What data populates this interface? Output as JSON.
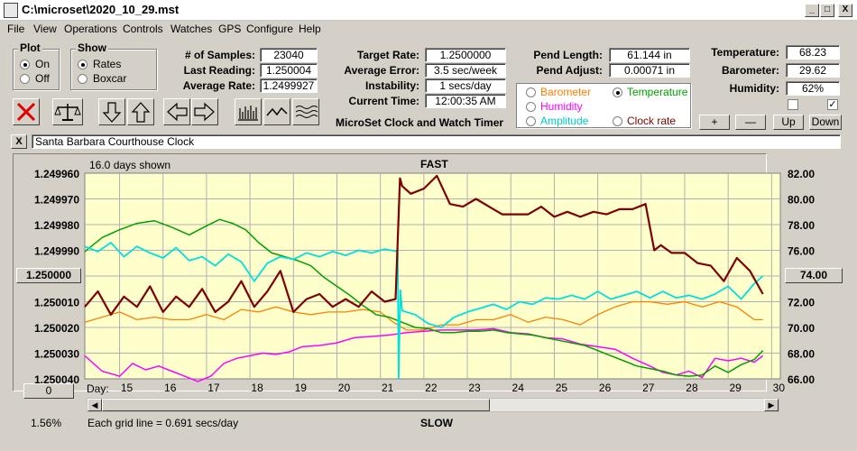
{
  "window": {
    "title": "C:\\microset\\2020_10_29.mst",
    "minimize": "_",
    "maximize": "□",
    "close": "X"
  },
  "menu": [
    "File",
    "View",
    "Operations",
    "Controls",
    "Watches",
    "GPS",
    "Configure",
    "Help"
  ],
  "plot_group": {
    "title": "Plot",
    "options": [
      {
        "label": "On",
        "selected": true
      },
      {
        "label": "Off",
        "selected": false
      }
    ]
  },
  "show_group": {
    "title": "Show",
    "options": [
      {
        "label": "Rates",
        "selected": true
      },
      {
        "label": "Boxcar",
        "selected": false
      }
    ]
  },
  "stats": {
    "samples_label": "# of Samples:",
    "samples": "23040",
    "last_label": "Last Reading:",
    "last": "1.250004",
    "avg_label": "Average Rate:",
    "avg": "1.2499927",
    "target_label": "Target Rate:",
    "target": "1.2500000",
    "error_label": "Average Error:",
    "error": "3.5 sec/week",
    "instab_label": "Instability:",
    "instab": "1 secs/day",
    "time_label": "Current Time:",
    "time": "12:00:35 AM",
    "pend_len_label": "Pend Length:",
    "pend_len": "61.144 in",
    "pend_adj_label": "Pend Adjust:",
    "pend_adj": "0.00071 in",
    "temp_label": "Temperature:",
    "temp": "68.23",
    "baro_label": "Barometer:",
    "baro": "29.62",
    "hum_label": "Humidity:",
    "hum": "62%"
  },
  "app_caption": "MicroSet Clock and Watch Timer",
  "series_select": [
    {
      "label": "Barometer",
      "color": "#ff7f00",
      "selected": false
    },
    {
      "label": "Temperature",
      "color": "#00a000",
      "selected": true
    },
    {
      "label": "Humidity",
      "color": "#ff00ff",
      "selected": false
    },
    {
      "label": "Clock rate",
      "color": "#7f0000",
      "selected": false
    },
    {
      "label": "Amplitude",
      "color": "#00c8c8",
      "selected": false
    }
  ],
  "right_buttons": [
    "+",
    "—",
    "Up",
    "Down"
  ],
  "checkboxes": [
    {
      "checked": false
    },
    {
      "checked": true
    }
  ],
  "clock_name": "Santa Barbara Courthouse Clock",
  "close_small": "X",
  "plot": {
    "days_shown": "16.0 days shown",
    "fast": "FAST",
    "slow": "SLOW",
    "grid_note": "Each grid line = 0.691 secs/day",
    "day_prefix": "Day:",
    "left_button": "1.250000",
    "right_button": "74.00",
    "zero_button": "0",
    "percent": "1.56%"
  },
  "chart_data": {
    "type": "line",
    "left_axis_ticks": [
      "1.249960",
      "1.249970",
      "1.249980",
      "1.249990",
      "1.250000",
      "1.250010",
      "1.250020",
      "1.250030",
      "1.250040"
    ],
    "right_axis_ticks": [
      "82.00",
      "80.00",
      "78.00",
      "76.00",
      "74.00",
      "72.00",
      "70.00",
      "68.00",
      "66.00"
    ],
    "x_ticks": [
      "15",
      "16",
      "17",
      "18",
      "19",
      "20",
      "21",
      "22",
      "23",
      "24",
      "25",
      "26",
      "27",
      "28",
      "29",
      "30"
    ],
    "xlim": [
      14.2,
      30.2
    ],
    "left_ylim": [
      1.24996,
      1.25004
    ],
    "right_ylim": [
      66,
      82
    ],
    "left_inverted": true,
    "grid": true,
    "background": "#ffffcc",
    "series": [
      {
        "key": "clock",
        "color": "#7f0000",
        "width": 2.2,
        "x": [
          14.2,
          14.5,
          14.8,
          15.1,
          15.4,
          15.7,
          16.0,
          16.3,
          16.6,
          16.9,
          17.2,
          17.5,
          17.8,
          18.1,
          18.4,
          18.7,
          19.0,
          19.3,
          19.6,
          19.9,
          20.2,
          20.5,
          20.8,
          21.1,
          21.35,
          21.45,
          21.5,
          21.7,
          22.0,
          22.3,
          22.6,
          22.9,
          23.2,
          23.5,
          23.8,
          24.1,
          24.4,
          24.7,
          25.0,
          25.3,
          25.6,
          25.9,
          26.2,
          26.5,
          26.8,
          27.1,
          27.3,
          27.45,
          27.7,
          28.0,
          28.3,
          28.6,
          28.9,
          29.2,
          29.5,
          29.8
        ],
        "y": [
          1.250012,
          1.250006,
          1.250015,
          1.250008,
          1.250012,
          1.250004,
          1.250014,
          1.250008,
          1.250012,
          1.250005,
          1.250014,
          1.25001,
          1.250002,
          1.250012,
          1.250006,
          1.249998,
          1.250014,
          1.250009,
          1.250007,
          1.250012,
          1.250009,
          1.250012,
          1.250006,
          1.25001,
          1.250009,
          1.249962,
          1.249965,
          1.249968,
          1.249966,
          1.249961,
          1.249972,
          1.249973,
          1.24997,
          1.249973,
          1.249976,
          1.249976,
          1.249976,
          1.249973,
          1.249977,
          1.249975,
          1.249977,
          1.249975,
          1.249976,
          1.249974,
          1.249974,
          1.249972,
          1.24999,
          1.249988,
          1.249991,
          1.249991,
          1.249995,
          1.249996,
          1.250002,
          1.249993,
          1.249998,
          1.250007
        ]
      },
      {
        "key": "amplitude",
        "color": "#00e0e0",
        "width": 1.8,
        "x": [
          14.2,
          14.5,
          14.8,
          15.1,
          15.4,
          15.7,
          16.0,
          16.3,
          16.6,
          16.9,
          17.2,
          17.5,
          17.8,
          18.1,
          18.4,
          18.7,
          19.0,
          19.3,
          19.6,
          19.9,
          20.2,
          20.5,
          20.8,
          21.1,
          21.4,
          21.42,
          21.46,
          21.5,
          21.8,
          22.1,
          22.4,
          22.7,
          23.0,
          23.3,
          23.6,
          23.9,
          24.2,
          24.5,
          24.8,
          25.1,
          25.4,
          25.7,
          26.0,
          26.3,
          26.6,
          26.9,
          27.2,
          27.5,
          27.8,
          28.1,
          28.4,
          28.7,
          29.0,
          29.3,
          29.6,
          29.8
        ],
        "y": [
          76.3,
          75.9,
          76.6,
          75.5,
          76.3,
          75.8,
          75.4,
          76.2,
          75.2,
          75.5,
          74.8,
          75.7,
          75.1,
          73.6,
          75.0,
          75.5,
          75.3,
          75.8,
          75.5,
          75.9,
          75.6,
          76.0,
          75.8,
          76.1,
          75.9,
          66.0,
          72.9,
          71.3,
          71.0,
          70.3,
          70.0,
          70.8,
          71.2,
          71.5,
          71.8,
          71.4,
          72.0,
          71.8,
          72.3,
          72.2,
          72.5,
          72.2,
          72.8,
          72.2,
          72.5,
          72.8,
          72.3,
          72.8,
          72.3,
          72.5,
          72.2,
          72.6,
          73.2,
          72.2,
          73.4,
          74.0
        ]
      },
      {
        "key": "temperature",
        "color": "#00a000",
        "width": 1.5,
        "x": [
          14.2,
          14.6,
          15.0,
          15.4,
          15.8,
          16.2,
          16.6,
          17.0,
          17.3,
          17.6,
          17.9,
          18.2,
          18.5,
          18.8,
          19.1,
          19.4,
          19.7,
          20.0,
          20.3,
          20.6,
          20.9,
          21.2,
          21.5,
          21.8,
          22.1,
          22.4,
          22.7,
          23.0,
          23.3,
          23.6,
          23.9,
          24.2,
          24.5,
          24.8,
          25.1,
          25.4,
          25.7,
          26.0,
          26.3,
          26.6,
          26.9,
          27.2,
          27.5,
          27.8,
          28.1,
          28.4,
          28.7,
          29.0,
          29.3,
          29.6,
          29.8
        ],
        "y": [
          75.9,
          77.0,
          77.6,
          78.1,
          78.3,
          77.8,
          77.2,
          77.9,
          78.4,
          78.1,
          77.6,
          76.6,
          75.8,
          75.5,
          75.2,
          74.8,
          73.9,
          73.2,
          72.5,
          71.7,
          71.0,
          70.8,
          70.4,
          70.0,
          69.9,
          69.6,
          69.6,
          69.7,
          69.7,
          69.8,
          69.6,
          69.5,
          69.4,
          69.2,
          69.0,
          68.8,
          68.6,
          68.2,
          67.8,
          67.4,
          67.0,
          66.8,
          66.6,
          66.3,
          66.2,
          66.3,
          67.0,
          66.5,
          67.1,
          67.5,
          68.2
        ]
      },
      {
        "key": "barometer",
        "color": "#ff8000",
        "width": 1.3,
        "x": [
          14.2,
          14.6,
          15.0,
          15.4,
          15.8,
          16.2,
          16.6,
          17.0,
          17.4,
          17.8,
          18.2,
          18.6,
          19.0,
          19.4,
          19.8,
          20.2,
          20.6,
          21.0,
          21.3,
          21.6,
          22.0,
          22.4,
          22.8,
          23.2,
          23.6,
          24.0,
          24.4,
          24.8,
          25.2,
          25.6,
          26.0,
          26.4,
          26.8,
          27.2,
          27.6,
          28.0,
          28.4,
          28.8,
          29.2,
          29.6,
          29.8
        ],
        "y": [
          1.250018,
          1.250016,
          1.250014,
          1.250017,
          1.250016,
          1.250017,
          1.250017,
          1.250015,
          1.250017,
          1.250013,
          1.250014,
          1.250012,
          1.250014,
          1.250015,
          1.250014,
          1.250014,
          1.250013,
          1.250014,
          1.250018,
          1.250021,
          1.250021,
          1.250019,
          1.250019,
          1.250017,
          1.250017,
          1.250015,
          1.250018,
          1.250016,
          1.250017,
          1.250019,
          1.250015,
          1.250012,
          1.25001,
          1.25001,
          1.250011,
          1.25001,
          1.250012,
          1.25001,
          1.250012,
          1.250017,
          1.250017
        ]
      },
      {
        "key": "humidity",
        "color": "#ff00ff",
        "width": 1.5,
        "x": [
          14.2,
          14.6,
          15.0,
          15.3,
          15.6,
          15.9,
          16.2,
          16.5,
          16.8,
          17.1,
          17.4,
          17.7,
          18.0,
          18.3,
          18.6,
          18.9,
          19.2,
          19.6,
          20.0,
          20.4,
          20.8,
          21.2,
          21.6,
          22.0,
          22.4,
          22.8,
          23.2,
          23.6,
          24.0,
          24.4,
          24.8,
          25.2,
          25.6,
          26.0,
          26.4,
          26.8,
          27.2,
          27.5,
          27.8,
          28.1,
          28.4,
          28.7,
          29.0,
          29.3,
          29.6,
          29.8
        ],
        "y": [
          67.8,
          66.6,
          66.2,
          67.2,
          66.7,
          67.0,
          66.6,
          66.2,
          65.8,
          66.2,
          67.2,
          67.6,
          67.8,
          68.0,
          67.9,
          68.1,
          68.5,
          68.6,
          68.8,
          69.2,
          69.3,
          69.4,
          69.6,
          69.7,
          69.8,
          69.8,
          69.8,
          69.9,
          69.6,
          69.5,
          69.2,
          69.1,
          68.7,
          68.5,
          68.3,
          67.6,
          67.0,
          66.5,
          66.3,
          66.6,
          66.1,
          67.6,
          67.4,
          67.6,
          67.3,
          67.8
        ]
      }
    ]
  }
}
